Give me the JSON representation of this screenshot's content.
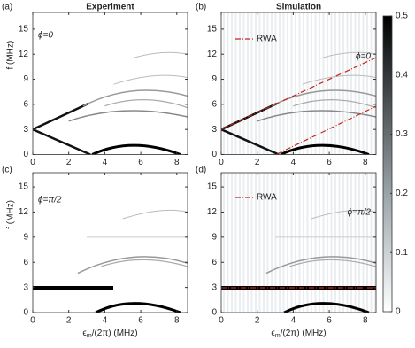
{
  "chart_data": [
    {
      "type": "heatmap",
      "panel_label": "(a)",
      "title": "Experiment",
      "annotation": "ϕ=0",
      "ylabel": "f (MHz)",
      "xlim": [
        0,
        8.6
      ],
      "ylim": [
        0,
        17
      ],
      "xticks": [
        0,
        2,
        4,
        6,
        8
      ],
      "yticks": [
        0,
        3,
        6,
        9,
        12,
        15
      ]
    },
    {
      "type": "heatmap",
      "panel_label": "(b)",
      "title": "Simulation",
      "annotation": "ϕ=0",
      "legend": "RWA",
      "xlim": [
        0,
        8.6
      ],
      "ylim": [
        0,
        17
      ],
      "xticks": [
        0,
        2,
        4,
        6,
        8
      ],
      "yticks": [
        0,
        3,
        6,
        9,
        12,
        15
      ],
      "colorbar": {
        "lim": [
          0,
          0.5
        ],
        "ticks": [
          0,
          0.1,
          0.2,
          0.3,
          0.4,
          0.5
        ]
      }
    },
    {
      "type": "heatmap",
      "panel_label": "(c)",
      "annotation": "ϕ=π/2",
      "ylabel": "f (MHz)",
      "xlabel": {
        "symbol": "ϵ",
        "sub": "m",
        "rest": "/(2π) (MHz)"
      },
      "xlim": [
        0,
        8.6
      ],
      "ylim": [
        0,
        16.7
      ],
      "xticks": [
        0,
        2,
        4,
        6,
        8
      ],
      "yticks": [
        0,
        3,
        6,
        9,
        12,
        15
      ]
    },
    {
      "type": "heatmap",
      "panel_label": "(d)",
      "annotation": "ϕ=π/2",
      "legend": "RWA",
      "xlabel": {
        "symbol": "ϵ",
        "sub": "m",
        "rest": "/(2π) (MHz)"
      },
      "xlim": [
        0,
        8.6
      ],
      "ylim": [
        0,
        16.7
      ],
      "xticks": [
        0,
        2,
        4,
        6,
        8
      ],
      "yticks": [
        0,
        3,
        6,
        9,
        12,
        15
      ]
    }
  ]
}
